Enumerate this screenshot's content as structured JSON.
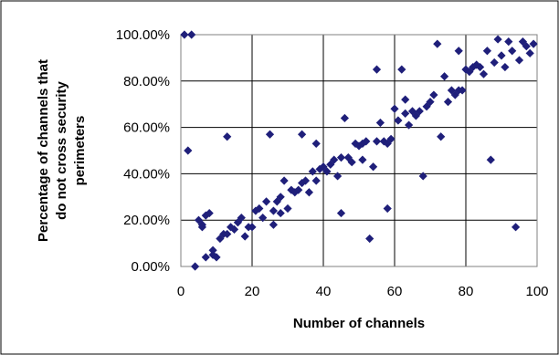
{
  "chart_data": {
    "type": "scatter",
    "xlabel": "Number of channels",
    "ylabel_lines": [
      "Percentage of channels that",
      "do not cross security",
      "perimeters"
    ],
    "xlim": [
      0,
      100
    ],
    "ylim": [
      0,
      1
    ],
    "x_ticks": [
      0,
      20,
      40,
      60,
      80,
      100
    ],
    "y_ticks": [
      0,
      0.2,
      0.4,
      0.6,
      0.8,
      1.0
    ],
    "x_tick_labels": [
      "0",
      "20",
      "40",
      "60",
      "80",
      "100"
    ],
    "y_tick_labels": [
      "0.00%",
      "20.00%",
      "40.00%",
      "60.00%",
      "80.00%",
      "100.00%"
    ],
    "grid": true,
    "marker": "diamond",
    "marker_color": "#1f1f7a",
    "points": [
      [
        1,
        1.0
      ],
      [
        3,
        1.0
      ],
      [
        2,
        0.5
      ],
      [
        4,
        0.0
      ],
      [
        5,
        0.2
      ],
      [
        6,
        0.17
      ],
      [
        6,
        0.18
      ],
      [
        7,
        0.04
      ],
      [
        7,
        0.22
      ],
      [
        8,
        0.23
      ],
      [
        9,
        0.05
      ],
      [
        9,
        0.07
      ],
      [
        10,
        0.04
      ],
      [
        11,
        0.12
      ],
      [
        12,
        0.14
      ],
      [
        13,
        0.56
      ],
      [
        13,
        0.14
      ],
      [
        14,
        0.17
      ],
      [
        15,
        0.16
      ],
      [
        16,
        0.19
      ],
      [
        17,
        0.21
      ],
      [
        18,
        0.13
      ],
      [
        19,
        0.17
      ],
      [
        20,
        0.17
      ],
      [
        21,
        0.24
      ],
      [
        22,
        0.25
      ],
      [
        23,
        0.21
      ],
      [
        24,
        0.28
      ],
      [
        25,
        0.57
      ],
      [
        26,
        0.18
      ],
      [
        26,
        0.24
      ],
      [
        27,
        0.28
      ],
      [
        28,
        0.3
      ],
      [
        28,
        0.23
      ],
      [
        29,
        0.37
      ],
      [
        30,
        0.25
      ],
      [
        31,
        0.33
      ],
      [
        32,
        0.32
      ],
      [
        33,
        0.33
      ],
      [
        34,
        0.57
      ],
      [
        34,
        0.36
      ],
      [
        35,
        0.37
      ],
      [
        36,
        0.32
      ],
      [
        37,
        0.41
      ],
      [
        38,
        0.53
      ],
      [
        38,
        0.37
      ],
      [
        39,
        0.42
      ],
      [
        40,
        0.43
      ],
      [
        41,
        0.41
      ],
      [
        42,
        0.44
      ],
      [
        43,
        0.46
      ],
      [
        44,
        0.39
      ],
      [
        45,
        0.47
      ],
      [
        45,
        0.23
      ],
      [
        46,
        0.64
      ],
      [
        47,
        0.47
      ],
      [
        48,
        0.45
      ],
      [
        49,
        0.53
      ],
      [
        50,
        0.52
      ],
      [
        51,
        0.46
      ],
      [
        51,
        0.53
      ],
      [
        52,
        0.54
      ],
      [
        53,
        0.12
      ],
      [
        54,
        0.43
      ],
      [
        55,
        0.85
      ],
      [
        55,
        0.54
      ],
      [
        56,
        0.62
      ],
      [
        57,
        0.54
      ],
      [
        58,
        0.53
      ],
      [
        58,
        0.25
      ],
      [
        59,
        0.55
      ],
      [
        60,
        0.68
      ],
      [
        61,
        0.63
      ],
      [
        62,
        0.85
      ],
      [
        63,
        0.66
      ],
      [
        63,
        0.72
      ],
      [
        64,
        0.61
      ],
      [
        65,
        0.67
      ],
      [
        66,
        0.65
      ],
      [
        67,
        0.67
      ],
      [
        68,
        0.39
      ],
      [
        69,
        0.69
      ],
      [
        70,
        0.71
      ],
      [
        71,
        0.74
      ],
      [
        72,
        0.96
      ],
      [
        73,
        0.56
      ],
      [
        74,
        0.82
      ],
      [
        75,
        0.71
      ],
      [
        76,
        0.76
      ],
      [
        77,
        0.74
      ],
      [
        78,
        0.93
      ],
      [
        78,
        0.76
      ],
      [
        79,
        0.76
      ],
      [
        80,
        0.85
      ],
      [
        81,
        0.84
      ],
      [
        82,
        0.86
      ],
      [
        83,
        0.87
      ],
      [
        84,
        0.86
      ],
      [
        85,
        0.83
      ],
      [
        86,
        0.93
      ],
      [
        87,
        0.46
      ],
      [
        88,
        0.88
      ],
      [
        89,
        0.98
      ],
      [
        90,
        0.91
      ],
      [
        91,
        0.86
      ],
      [
        92,
        0.97
      ],
      [
        93,
        0.93
      ],
      [
        94,
        0.17
      ],
      [
        95,
        0.89
      ],
      [
        96,
        0.97
      ],
      [
        97,
        0.95
      ],
      [
        98,
        0.92
      ],
      [
        99,
        0.96
      ]
    ]
  }
}
